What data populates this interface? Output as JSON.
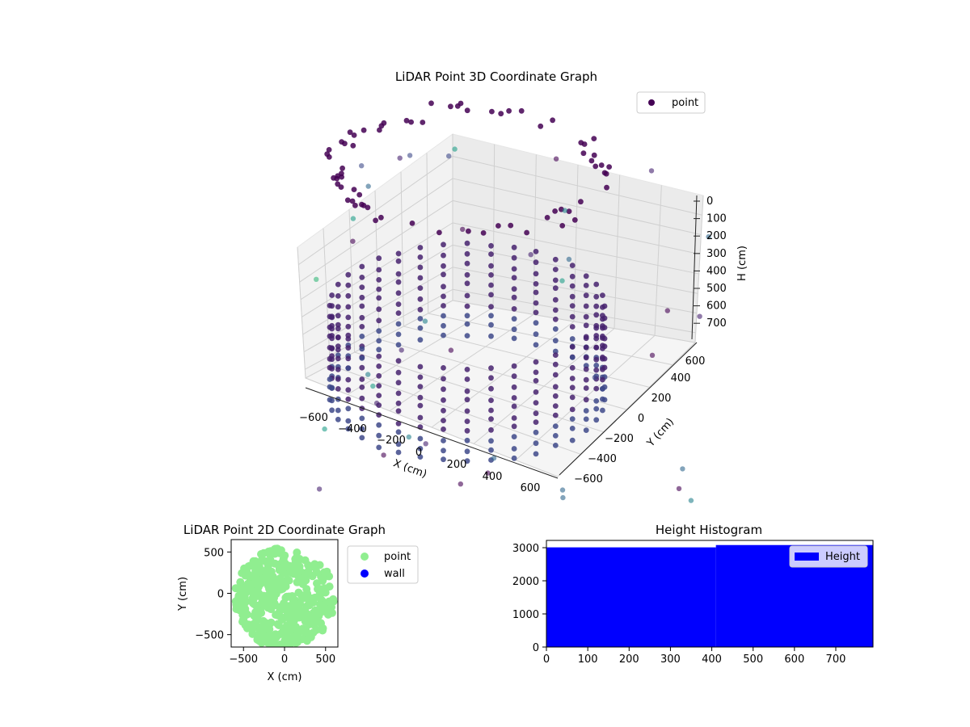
{
  "chart_data": [
    {
      "type": "scatter3d",
      "title": "LiDAR Point 3D Coordinate Graph",
      "xlabel": "X (cm)",
      "ylabel": "Y (cm)",
      "zlabel": "H (cm)",
      "x_ticks": [
        "−600",
        "−400",
        "−200",
        "0",
        "200",
        "400",
        "600"
      ],
      "y_ticks": [
        "−600",
        "−400",
        "−200",
        "0",
        "200",
        "400",
        "600"
      ],
      "z_ticks": [
        "0",
        "100",
        "200",
        "300",
        "400",
        "500",
        "600",
        "700"
      ],
      "xlim": [
        -650,
        650
      ],
      "ylim": [
        -650,
        650
      ],
      "zlim": [
        0,
        750
      ],
      "z_inverted": true,
      "grid": true,
      "legend": {
        "placement": "top-right",
        "entries": [
          {
            "name": "point",
            "color": "#440154"
          }
        ]
      },
      "colormap": "viridis",
      "series": [
        {
          "name": "point",
          "color": "#440154"
        }
      ]
    },
    {
      "type": "scatter",
      "title": "LiDAR Point 2D Coordinate Graph",
      "xlabel": "X (cm)",
      "ylabel": "Y (cm)",
      "x_ticks": [
        "−500",
        "0",
        "500"
      ],
      "y_ticks": [
        "500",
        "0",
        "−500"
      ],
      "xlim": [
        -650,
        650
      ],
      "ylim": [
        -650,
        650
      ],
      "legend": {
        "placement": "outside-right",
        "entries": [
          {
            "name": "point",
            "color": "#90ee90"
          },
          {
            "name": "wall",
            "color": "#0000ff"
          }
        ]
      },
      "series": [
        {
          "name": "point",
          "color": "#90ee90"
        },
        {
          "name": "wall",
          "color": "#0000ff"
        }
      ]
    },
    {
      "type": "bar",
      "title": "Height Histogram",
      "x_ticks": [
        "0",
        "100",
        "200",
        "300",
        "400",
        "500",
        "600",
        "700"
      ],
      "y_ticks": [
        "0",
        "1000",
        "2000",
        "3000"
      ],
      "xlim": [
        0,
        790
      ],
      "ylim": [
        0,
        3220
      ],
      "legend": {
        "placement": "top-right",
        "entries": [
          {
            "name": "Height",
            "color": "#0000ff"
          }
        ]
      },
      "series": [
        {
          "name": "Height",
          "color": "#0000ff"
        }
      ],
      "bins": [
        {
          "x0": 0,
          "x1": 410,
          "value": 3010
        },
        {
          "x0": 410,
          "x1": 790,
          "value": 3080
        }
      ]
    }
  ]
}
